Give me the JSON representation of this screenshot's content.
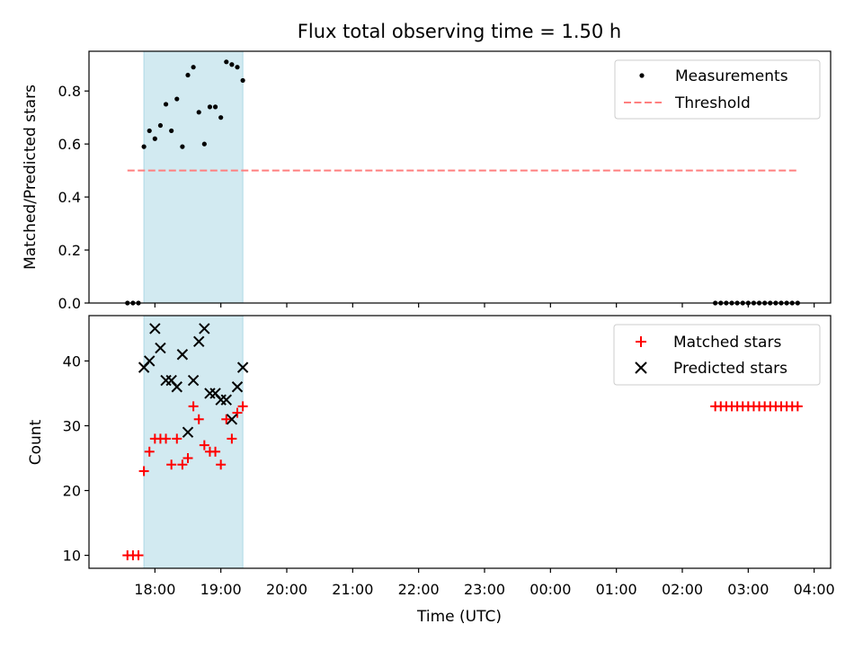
{
  "chart_data": [
    {
      "type": "scatter",
      "title": "Flux total observing time = 1.50 h",
      "xlabel": "",
      "ylabel": "Matched/Predicted stars",
      "xlim": [
        "17:00",
        "04:15"
      ],
      "ylim": [
        0,
        0.95
      ],
      "yticks": [
        0.0,
        0.2,
        0.4,
        0.6,
        0.8
      ],
      "ytick_labels": [
        "0.0",
        "0.2",
        "0.4",
        "0.6",
        "0.8"
      ],
      "shaded_interval": [
        "17:50",
        "19:20"
      ],
      "shade_color": "#add8e6",
      "legend_position": "top-right",
      "grid": false,
      "threshold": {
        "name": "Threshold",
        "value": 0.5,
        "x_range": [
          "17:35",
          "03:45"
        ],
        "color": "#ff7f7f",
        "style": "dashed"
      },
      "series": [
        {
          "name": "Measurements",
          "color": "#000000",
          "marker": "dot",
          "points": [
            [
              "17:35",
              0.0
            ],
            [
              "17:40",
              0.0
            ],
            [
              "17:45",
              0.0
            ],
            [
              "17:50",
              0.59
            ],
            [
              "17:55",
              0.65
            ],
            [
              "18:00",
              0.62
            ],
            [
              "18:05",
              0.67
            ],
            [
              "18:10",
              0.75
            ],
            [
              "18:15",
              0.65
            ],
            [
              "18:20",
              0.77
            ],
            [
              "18:25",
              0.59
            ],
            [
              "18:30",
              0.86
            ],
            [
              "18:35",
              0.89
            ],
            [
              "18:40",
              0.72
            ],
            [
              "18:45",
              0.6
            ],
            [
              "18:50",
              0.74
            ],
            [
              "18:55",
              0.74
            ],
            [
              "19:00",
              0.7
            ],
            [
              "19:05",
              0.91
            ],
            [
              "19:10",
              0.9
            ],
            [
              "19:15",
              0.89
            ],
            [
              "19:20",
              0.84
            ],
            [
              "02:30",
              0.0
            ],
            [
              "02:35",
              0.0
            ],
            [
              "02:40",
              0.0
            ],
            [
              "02:45",
              0.0
            ],
            [
              "02:50",
              0.0
            ],
            [
              "02:55",
              0.0
            ],
            [
              "03:00",
              0.0
            ],
            [
              "03:05",
              0.0
            ],
            [
              "03:10",
              0.0
            ],
            [
              "03:15",
              0.0
            ],
            [
              "03:20",
              0.0
            ],
            [
              "03:25",
              0.0
            ],
            [
              "03:30",
              0.0
            ],
            [
              "03:35",
              0.0
            ],
            [
              "03:40",
              0.0
            ],
            [
              "03:45",
              0.0
            ]
          ]
        }
      ]
    },
    {
      "type": "scatter",
      "title": "",
      "xlabel": "Time (UTC)",
      "ylabel": "Count",
      "xlim": [
        "17:00",
        "04:15"
      ],
      "ylim": [
        8,
        47
      ],
      "yticks": [
        10,
        20,
        30,
        40
      ],
      "ytick_labels": [
        "10",
        "20",
        "30",
        "40"
      ],
      "xticks": [
        "18:00",
        "19:00",
        "20:00",
        "21:00",
        "22:00",
        "23:00",
        "00:00",
        "01:00",
        "02:00",
        "03:00",
        "04:00"
      ],
      "shaded_interval": [
        "17:50",
        "19:20"
      ],
      "shade_color": "#add8e6",
      "legend_position": "top-right",
      "grid": false,
      "series": [
        {
          "name": "Matched stars",
          "color": "#ff0000",
          "marker": "plus",
          "points": [
            [
              "17:35",
              10
            ],
            [
              "17:40",
              10
            ],
            [
              "17:45",
              10
            ],
            [
              "17:50",
              23
            ],
            [
              "17:55",
              26
            ],
            [
              "18:00",
              28
            ],
            [
              "18:05",
              28
            ],
            [
              "18:10",
              28
            ],
            [
              "18:15",
              24
            ],
            [
              "18:20",
              28
            ],
            [
              "18:25",
              24
            ],
            [
              "18:30",
              25
            ],
            [
              "18:35",
              33
            ],
            [
              "18:40",
              31
            ],
            [
              "18:45",
              27
            ],
            [
              "18:50",
              26
            ],
            [
              "18:55",
              26
            ],
            [
              "19:00",
              24
            ],
            [
              "19:05",
              31
            ],
            [
              "19:10",
              28
            ],
            [
              "19:15",
              32
            ],
            [
              "19:20",
              33
            ],
            [
              "02:30",
              33
            ],
            [
              "02:35",
              33
            ],
            [
              "02:40",
              33
            ],
            [
              "02:45",
              33
            ],
            [
              "02:50",
              33
            ],
            [
              "02:55",
              33
            ],
            [
              "03:00",
              33
            ],
            [
              "03:05",
              33
            ],
            [
              "03:10",
              33
            ],
            [
              "03:15",
              33
            ],
            [
              "03:20",
              33
            ],
            [
              "03:25",
              33
            ],
            [
              "03:30",
              33
            ],
            [
              "03:35",
              33
            ],
            [
              "03:40",
              33
            ],
            [
              "03:45",
              33
            ]
          ]
        },
        {
          "name": "Predicted stars",
          "color": "#000000",
          "marker": "x",
          "points": [
            [
              "17:50",
              39
            ],
            [
              "17:55",
              40
            ],
            [
              "18:00",
              45
            ],
            [
              "18:05",
              42
            ],
            [
              "18:10",
              37
            ],
            [
              "18:15",
              37
            ],
            [
              "18:20",
              36
            ],
            [
              "18:25",
              41
            ],
            [
              "18:30",
              29
            ],
            [
              "18:35",
              37
            ],
            [
              "18:40",
              43
            ],
            [
              "18:45",
              45
            ],
            [
              "18:50",
              35
            ],
            [
              "18:55",
              35
            ],
            [
              "19:00",
              34
            ],
            [
              "19:05",
              34
            ],
            [
              "19:10",
              31
            ],
            [
              "19:15",
              36
            ],
            [
              "19:20",
              39
            ]
          ]
        }
      ]
    }
  ]
}
